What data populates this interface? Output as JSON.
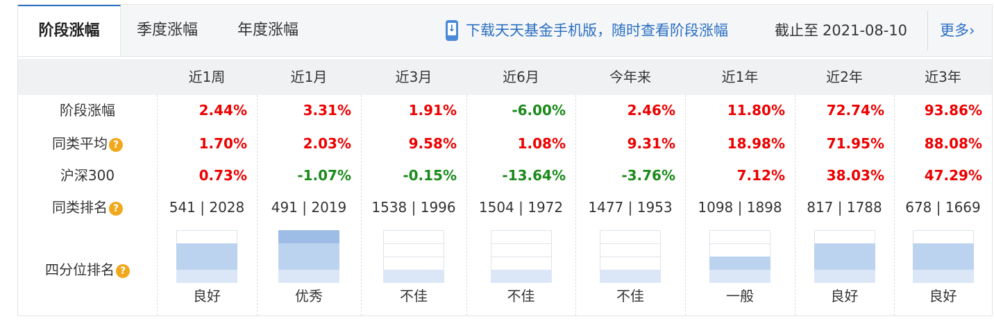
{
  "tabs": [
    {
      "label": "阶段涨幅",
      "active": true
    },
    {
      "label": "季度涨幅",
      "active": false
    },
    {
      "label": "年度涨幅",
      "active": false
    }
  ],
  "promo": {
    "text": "下载天天基金手机版，随时查看阶段涨幅",
    "icon": "phone-download-icon"
  },
  "deadline": {
    "label": "截止至",
    "date": "2021-08-10"
  },
  "more": {
    "label": "更多"
  },
  "columns": [
    "近1周",
    "近1月",
    "近3月",
    "近6月",
    "今年来",
    "近1年",
    "近2年",
    "近3年"
  ],
  "rows": {
    "change": {
      "label": "阶段涨幅",
      "values": [
        "2.44%",
        "3.31%",
        "1.91%",
        "-6.00%",
        "2.46%",
        "11.80%",
        "72.74%",
        "93.86%"
      ]
    },
    "category_avg": {
      "label": "同类平均",
      "values": [
        "1.70%",
        "2.03%",
        "9.58%",
        "1.08%",
        "9.31%",
        "18.98%",
        "71.95%",
        "88.08%"
      ]
    },
    "hs300": {
      "label": "沪深300",
      "values": [
        "0.73%",
        "-1.07%",
        "-0.15%",
        "-13.64%",
        "-3.76%",
        "7.12%",
        "38.03%",
        "47.29%"
      ]
    },
    "rank": {
      "label": "同类排名",
      "values": [
        "541 | 2028",
        "491 | 2019",
        "1538 | 1996",
        "1504 | 1972",
        "1477 | 1953",
        "1098 | 1898",
        "817 | 1788",
        "678 | 1669"
      ]
    },
    "quartile": {
      "label": "四分位排名",
      "values": [
        "良好",
        "优秀",
        "不佳",
        "不佳",
        "不佳",
        "一般",
        "良好",
        "良好"
      ],
      "level": [
        3,
        4,
        1,
        1,
        1,
        2,
        3,
        3
      ]
    }
  },
  "colors": {
    "up": "#ee0000",
    "down": "#1a8a1a",
    "link": "#2a6fc2",
    "band_dark": "#9dbde6",
    "band_mid": "#bcd3ef",
    "band_light": "#dbe7f7"
  }
}
